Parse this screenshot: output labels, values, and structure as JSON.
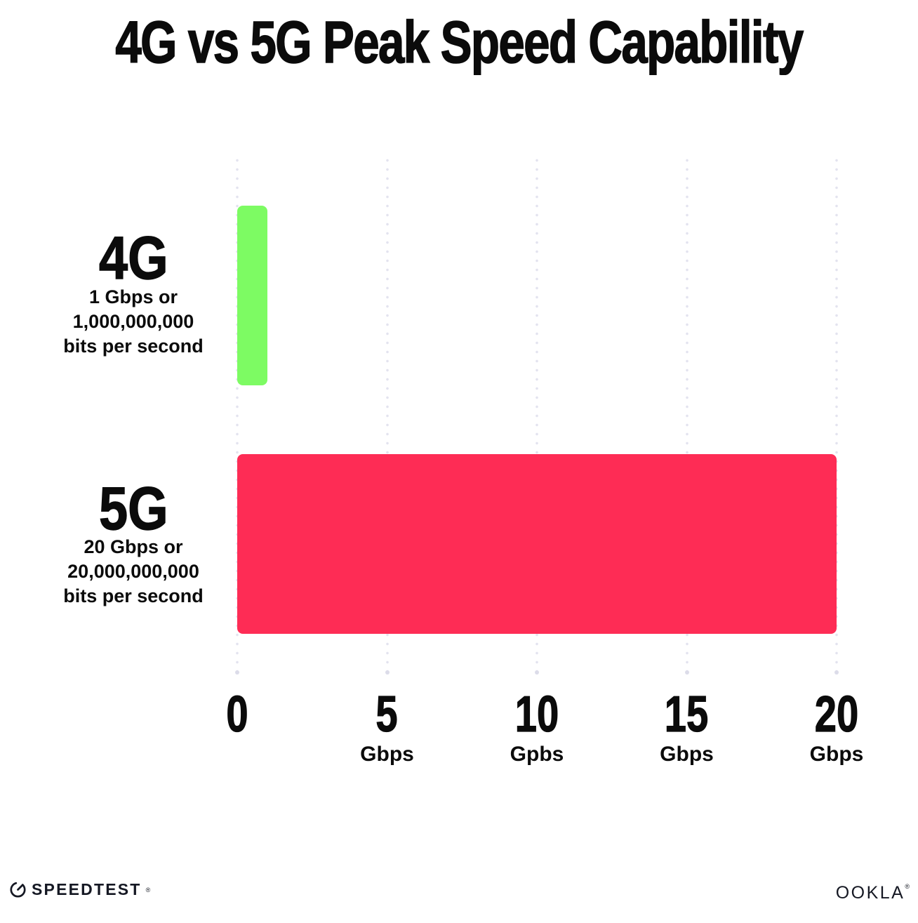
{
  "chart_data": {
    "type": "bar",
    "orientation": "horizontal",
    "title": "4G vs 5G Peak Speed Capability",
    "xlabel": "",
    "ylabel": "",
    "xlim": [
      0,
      20
    ],
    "grid": "dotted-vertical-gridlines",
    "rows": [
      {
        "label": "4G",
        "sublabel_lines": [
          "1 Gbps or",
          "1,000,000,000",
          "bits per second"
        ],
        "value": 1,
        "color": "#7DFB63"
      },
      {
        "label": "5G",
        "sublabel_lines": [
          "20 Gbps or",
          "20,000,000,000",
          "bits per second"
        ],
        "value": 20,
        "color": "#FE2C55"
      }
    ],
    "x_ticks": [
      {
        "value": 0,
        "label": "0",
        "unit": ""
      },
      {
        "value": 5,
        "label": "5",
        "unit": "Gbps"
      },
      {
        "value": 10,
        "label": "10",
        "unit": "Gpbs"
      },
      {
        "value": 15,
        "label": "15",
        "unit": "Gbps"
      },
      {
        "value": 20,
        "label": "20",
        "unit": "Gbps"
      }
    ]
  },
  "footer": {
    "speedtest_label": "SPEEDTEST",
    "speedtest_trademark": "®",
    "ookla_label": "OOKLA",
    "ookla_trademark": "®"
  },
  "colors": {
    "bar_4g": "#7DFB63",
    "bar_5g": "#FE2C55",
    "gridline": "#E3E3EF",
    "text": "#0B0B0B",
    "background": "#FFFFFF"
  }
}
